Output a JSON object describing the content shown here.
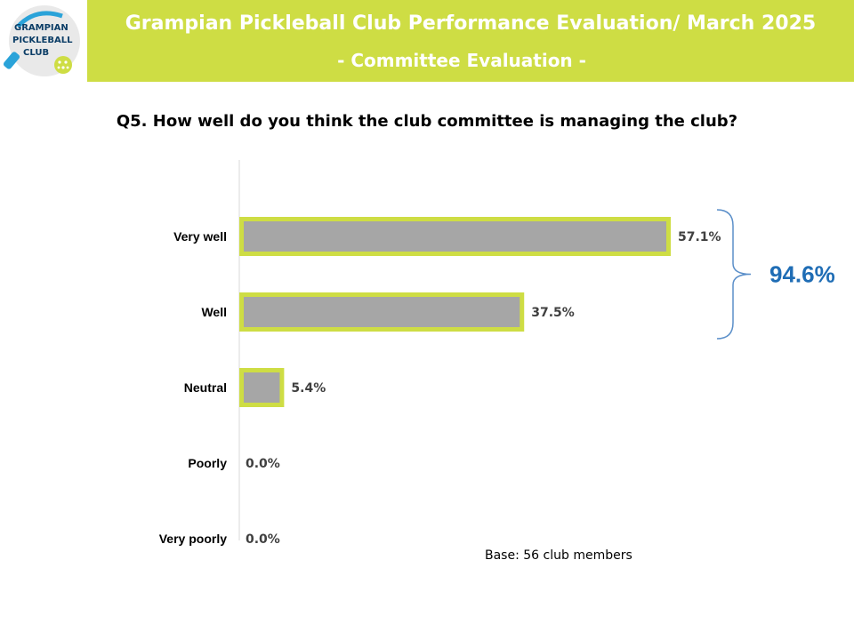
{
  "header": {
    "logo_lines": [
      "GRAMPIAN",
      "PICKLEBALL",
      "CLUB"
    ],
    "title": "Grampian Pickleball Club Performance Evaluation/ March 2025",
    "subtitle": "- Committee Evaluation -"
  },
  "colors": {
    "banner": "#cedd44",
    "bar_fill": "#a6a6a6",
    "bar_border": "#cedd44",
    "bracket": "#5b8fc9",
    "total_text": "#1f6db5"
  },
  "chart_data": {
    "type": "bar",
    "orientation": "horizontal",
    "title": "Q5. How well do you think the club committee is managing the club?",
    "categories": [
      "Very well",
      "Well",
      "Neutral",
      "Poorly",
      "Very poorly"
    ],
    "values": [
      57.1,
      37.5,
      5.4,
      0.0,
      0.0
    ],
    "value_labels": [
      "57.1%",
      "37.5%",
      "5.4%",
      "0.0%",
      "0.0%"
    ],
    "xlim": [
      0,
      57.1
    ],
    "grid": false,
    "annotations": [
      {
        "text": "94.6%",
        "spans": [
          "Very well",
          "Well"
        ]
      }
    ]
  },
  "footer": {
    "base": "Base: 56 club members"
  }
}
